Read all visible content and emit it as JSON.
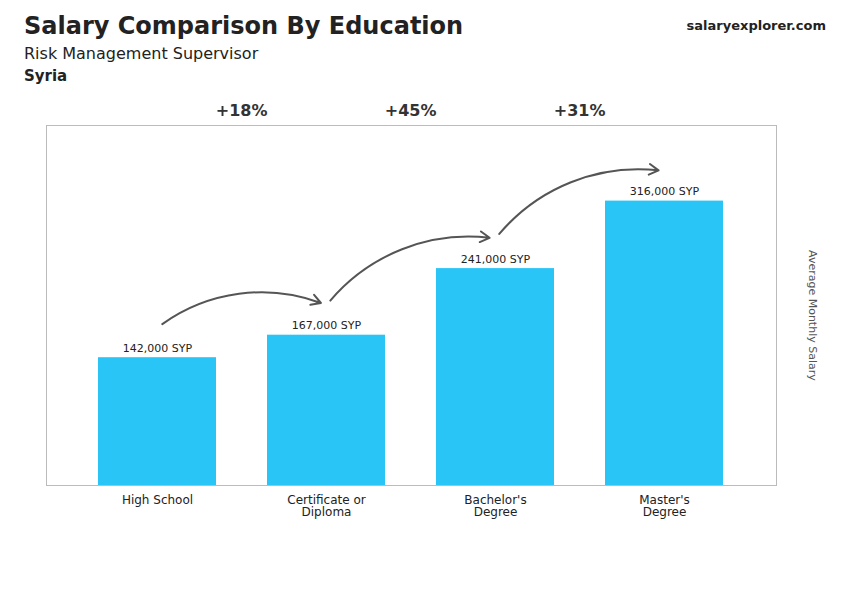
{
  "chart_data": {
    "type": "bar",
    "title": "Salary Comparison By Education",
    "subtitle": "Risk Management Supervisor",
    "annotations": [
      "Syria",
      "salaryexplorer.com"
    ],
    "ylabel": "Average Monthly Salary",
    "categories": [
      "High School",
      "Certificate or\nDiploma",
      "Bachelor's\nDegree",
      "Master's\nDegree"
    ],
    "values": [
      142000,
      167000,
      241000,
      316000
    ],
    "value_labels": [
      "142,000 SYP",
      "167,000 SYP",
      "241,000 SYP",
      "316,000 SYP"
    ],
    "change_labels": [
      "+18%",
      "+45%",
      "+31%"
    ],
    "color": "#29c5f6",
    "ylim": [
      0,
      400000
    ],
    "grid": false,
    "data_labels": true,
    "tick_labels": "x"
  }
}
